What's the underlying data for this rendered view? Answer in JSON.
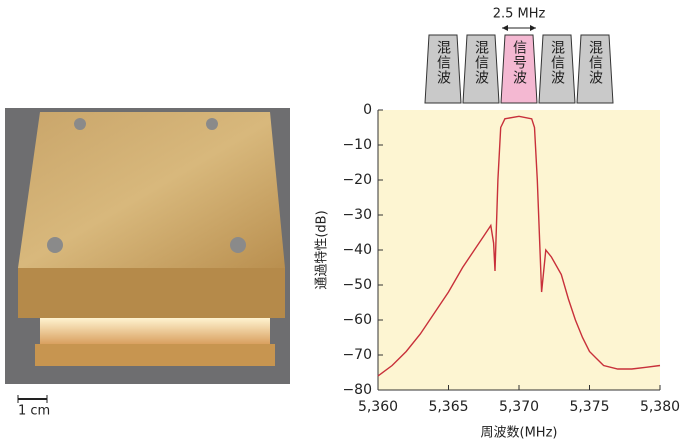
{
  "chart_data": {
    "type": "line",
    "ylabel": "通過特性(dB)",
    "xlabel": "周波数(MHz)",
    "xlim": [
      5360,
      5380
    ],
    "xticks": [
      {
        "value": 5360,
        "label": "5,360"
      },
      {
        "value": 5365,
        "label": "5,365"
      },
      {
        "value": 5370,
        "label": "5,370"
      },
      {
        "value": 5375,
        "label": "5,375"
      },
      {
        "value": 5380,
        "label": "5,380"
      }
    ],
    "ylim": [
      -80,
      0
    ],
    "yticks": [
      0,
      {
        "value": -10,
        "label": "−10"
      },
      {
        "value": -20,
        "label": "−20"
      },
      {
        "value": -30,
        "label": "−30"
      },
      {
        "value": -40,
        "label": "−40"
      },
      {
        "value": -50,
        "label": "−50"
      },
      {
        "value": -60,
        "label": "−60"
      },
      {
        "value": -70,
        "label": "−70"
      },
      {
        "value": -80,
        "label": "−80"
      }
    ],
    "background": "#fdf5d2",
    "x": [
      5360,
      5361,
      5362,
      5363,
      5364,
      5365,
      5366,
      5367,
      5367.5,
      5368,
      5368.2,
      5368.3,
      5368.5,
      5368.7,
      5369,
      5370,
      5370.9,
      5371.1,
      5371.3,
      5371.6,
      5371.9,
      5372.3,
      5373,
      5373.5,
      5374,
      5374.5,
      5375,
      5375.5,
      5376,
      5377,
      5378,
      5379,
      5380
    ],
    "series": [
      {
        "color": "#c8303a",
        "values": [
          -76,
          -73,
          -69,
          -64,
          -58,
          -52,
          -45,
          -39,
          -36,
          -33,
          -38,
          -46,
          -20,
          -5,
          -2.5,
          -1.8,
          -2.5,
          -5,
          -20,
          -52,
          -40,
          -42,
          -47,
          -54,
          -60,
          -65,
          -69,
          -71,
          -73,
          -74,
          -74,
          -73.5,
          -73
        ]
      }
    ],
    "channel_labels": [
      "混信波",
      "混信波",
      "信号波",
      "混信波",
      "混信波"
    ],
    "channel_colors": [
      "#c9c9c9",
      "#c9c9c9",
      "#f4b8d2",
      "#c9c9c9",
      "#c9c9c9"
    ],
    "annotation": "2.5 MHz"
  },
  "photo": {
    "scale_label": "1 cm"
  }
}
